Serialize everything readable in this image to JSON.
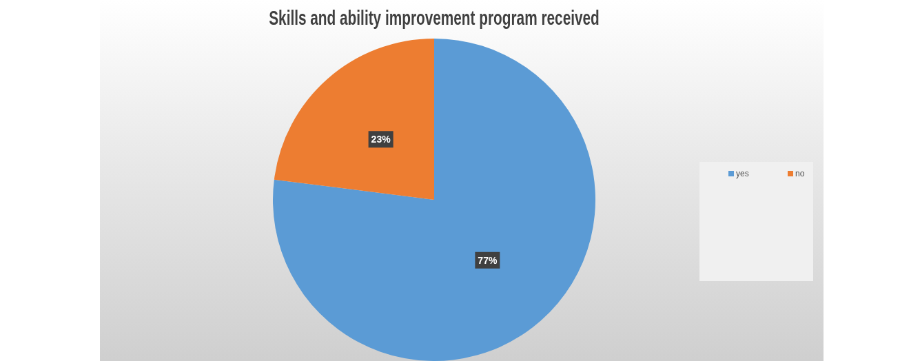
{
  "chart_data": {
    "type": "pie",
    "title": "Skills and ability improvement program received",
    "categories": [
      "yes",
      "no"
    ],
    "values": [
      77,
      23
    ],
    "colors": [
      "#5b9bd5",
      "#ed7d31"
    ],
    "value_labels": [
      "77%",
      "23%"
    ],
    "legend": "right"
  }
}
